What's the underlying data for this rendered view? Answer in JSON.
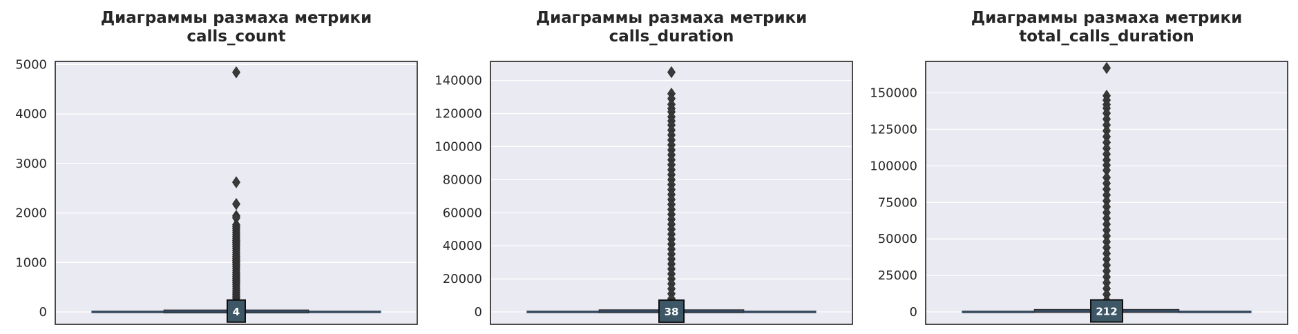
{
  "chart_data": [
    {
      "type": "box",
      "title": [
        "Диаграммы размаха метрики",
        "calls_count"
      ],
      "ylim": [
        -250,
        5060
      ],
      "yticks": [
        0,
        1000,
        2000,
        3000,
        4000,
        5000
      ],
      "ytick_labels": [
        "0",
        "1000",
        "2000",
        "3000",
        "4000",
        "5000"
      ],
      "box": {
        "whisker_low": 1,
        "q1": 1,
        "median": 4,
        "q3": 12,
        "whisker_high": 28
      },
      "outliers": [
        4840,
        2620,
        2180,
        1940,
        1900,
        1760,
        1720,
        1680,
        1640,
        1600,
        1560,
        1520,
        1480,
        1440,
        1400,
        1360,
        1320,
        1280,
        1240,
        1200,
        1160,
        1120,
        1080,
        1040,
        1000,
        960,
        920,
        880,
        840,
        800,
        760,
        720,
        680,
        640,
        600,
        560,
        520,
        480,
        440,
        400,
        360,
        320,
        280,
        240,
        200,
        160,
        120,
        80,
        50
      ],
      "median_label": "4",
      "grid": true,
      "colors": {
        "box": "#34495e",
        "median_badge": "#3d5766",
        "background": "#eaeaf2",
        "outlier": "#3a3a3a"
      }
    },
    {
      "type": "box",
      "title": [
        "Диаграммы размаха метрики",
        "calls_duration"
      ],
      "ylim": [
        -7500,
        151500
      ],
      "yticks": [
        0,
        20000,
        40000,
        60000,
        80000,
        100000,
        120000,
        140000
      ],
      "ytick_labels": [
        "0",
        "20000",
        "40000",
        "60000",
        "80000",
        "100000",
        "120000",
        "140000"
      ],
      "box": {
        "whisker_low": 0,
        "q1": 0,
        "median": 38,
        "q3": 580,
        "whisker_high": 1450
      },
      "outliers": [
        145000,
        132000,
        129000,
        125500,
        123000,
        121000,
        118000,
        115500,
        113000,
        110000,
        107000,
        104000,
        101000,
        98000,
        95000,
        92000,
        89000,
        86000,
        83000,
        80000,
        77000,
        74000,
        71000,
        68000,
        65000,
        62000,
        59000,
        56000,
        53000,
        50000,
        47000,
        44000,
        41000,
        38000,
        35000,
        32000,
        29000,
        26000,
        23000,
        20000,
        17000,
        14000,
        11000,
        8000,
        5000,
        2500
      ],
      "median_label": "38",
      "grid": true,
      "colors": {
        "box": "#34495e",
        "median_badge": "#3d5766",
        "background": "#eaeaf2",
        "outlier": "#3a3a3a"
      }
    },
    {
      "type": "box",
      "title": [
        "Диаграммы размаха метрики",
        "total_calls_duration"
      ],
      "ylim": [
        -8500,
        171500
      ],
      "yticks": [
        0,
        25000,
        50000,
        75000,
        100000,
        125000,
        150000
      ],
      "ytick_labels": [
        "0",
        "25000",
        "50000",
        "75000",
        "100000",
        "125000",
        "150000"
      ],
      "box": {
        "whisker_low": 0,
        "q1": 0,
        "median": 212,
        "q3": 1100,
        "whisker_high": 2700
      },
      "outliers": [
        167000,
        148000,
        145000,
        142000,
        139500,
        136000,
        132000,
        128000,
        124000,
        120000,
        116000,
        112000,
        108000,
        104000,
        100500,
        97000,
        92000,
        88000,
        84000,
        80000,
        76000,
        72000,
        68000,
        64000,
        60000,
        56000,
        52000,
        48000,
        44000,
        40000,
        36000,
        32000,
        28000,
        24000,
        20000,
        16000,
        12000,
        8000,
        4500
      ],
      "median_label": "212",
      "grid": true,
      "colors": {
        "box": "#34495e",
        "median_badge": "#3d5766",
        "background": "#eaeaf2",
        "outlier": "#3a3a3a"
      }
    }
  ]
}
